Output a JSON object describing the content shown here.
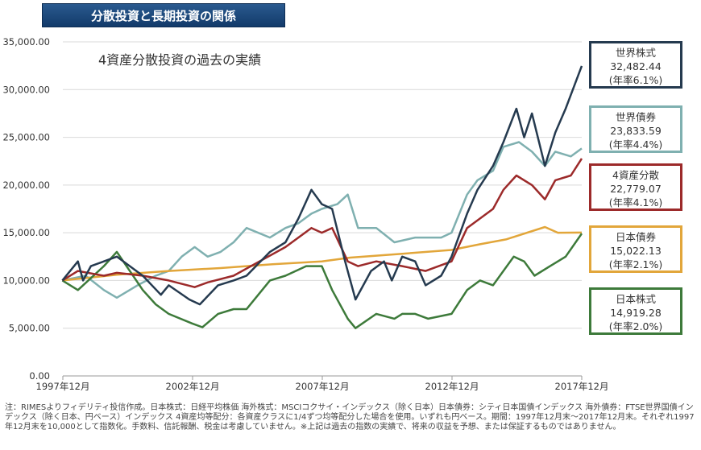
{
  "banner": "分散投資と長期投資の関係",
  "chart_data": {
    "type": "line",
    "title": "4資産分散投資の過去の実績",
    "xlim": [
      1997.92,
      2017.92
    ],
    "ylim": [
      0,
      35000
    ],
    "yticks": [
      0,
      5000,
      10000,
      15000,
      20000,
      25000,
      30000,
      35000
    ],
    "ytick_labels": [
      "0.00",
      "5,000.00",
      "10,000.00",
      "15,000.00",
      "20,000.00",
      "25,000.00",
      "30,000.00",
      "35,000.00"
    ],
    "xticks": [
      1997.92,
      2002.92,
      2007.92,
      2012.92,
      2017.92
    ],
    "xtick_labels": [
      "1997年12月",
      "2002年12月",
      "2007年12月",
      "2012年12月",
      "2017年12月"
    ],
    "grid": "horizontal",
    "series": [
      {
        "name": "世界債券",
        "value": "23,833.59",
        "rate": "(年率4.4%)",
        "color": "#7fb0b0",
        "x": [
          1997.9,
          1998.8,
          1999.5,
          2000.0,
          2000.8,
          2001.5,
          2002.0,
          2002.5,
          2003,
          2003.5,
          2004,
          2004.5,
          2005,
          2005.9,
          2006.5,
          2007,
          2007.5,
          2007.9,
          2008.5,
          2008.9,
          2009.3,
          2010,
          2010.7,
          2011.5,
          2012,
          2012.5,
          2012.9,
          2013.5,
          2013.9,
          2014.5,
          2014.9,
          2015.5,
          2016.0,
          2016.5,
          2016.9,
          2017.5,
          2017.92
        ],
        "y": [
          10000,
          10500,
          9000,
          8200,
          9500,
          10500,
          11000,
          12500,
          13500,
          12500,
          13000,
          14000,
          15500,
          14500,
          15500,
          16000,
          17000,
          17500,
          18000,
          19000,
          15500,
          15500,
          14000,
          14500,
          14500,
          14500,
          15000,
          19000,
          20500,
          21500,
          24000,
          24500,
          23500,
          22000,
          23500,
          23000,
          23834
        ]
      },
      {
        "name": "日本債券",
        "value": "15,022.13",
        "rate": "(年率2.1%)",
        "color": "#e2a63a",
        "x": [
          1997.9,
          2000,
          2002,
          2004,
          2006,
          2007.9,
          2009,
          2011,
          2012.9,
          2014,
          2015,
          2016.5,
          2017,
          2017.92
        ],
        "y": [
          10000,
          10600,
          11000,
          11300,
          11700,
          12000,
          12400,
          12800,
          13200,
          13800,
          14300,
          15600,
          15000,
          15022
        ]
      },
      {
        "name": "日本株式",
        "value": "14,919.28",
        "rate": "(年率2.0%)",
        "color": "#3d7a3a",
        "x": [
          1997.9,
          1998.5,
          1999.5,
          2000,
          2000.5,
          2001,
          2001.5,
          2002,
          2002.9,
          2003.3,
          2003.9,
          2004.5,
          2005,
          2005.9,
          2006.5,
          2007.3,
          2007.9,
          2008.3,
          2008.9,
          2009.2,
          2010,
          2010.7,
          2011,
          2011.5,
          2012,
          2012.9,
          2013.5,
          2014,
          2014.5,
          2015.3,
          2015.7,
          2016.1,
          2016.7,
          2017.3,
          2017.92
        ],
        "y": [
          10000,
          9000,
          11500,
          13000,
          11000,
          9000,
          7500,
          6500,
          5500,
          5100,
          6500,
          7000,
          7000,
          10000,
          10500,
          11500,
          11500,
          9000,
          6000,
          5000,
          6500,
          6000,
          6500,
          6500,
          6000,
          6500,
          9000,
          10000,
          9500,
          12500,
          12000,
          10500,
          11500,
          12500,
          14919
        ]
      },
      {
        "name": "4資産分散",
        "value": "22,779.07",
        "rate": "(年率4.1%)",
        "color": "#9c2a2a",
        "x": [
          1997.9,
          1998.5,
          1999.5,
          2000,
          2001,
          2002,
          2003,
          2003.5,
          2004.5,
          2005.5,
          2006.5,
          2007.5,
          2007.9,
          2008.3,
          2008.9,
          2009.3,
          2010,
          2011,
          2011.9,
          2012.9,
          2013.5,
          2014.5,
          2014.9,
          2015.4,
          2016.0,
          2016.5,
          2016.9,
          2017.5,
          2017.92
        ],
        "y": [
          10000,
          11000,
          10500,
          10800,
          10500,
          10000,
          9300,
          9800,
          10500,
          12000,
          13500,
          15500,
          15000,
          15500,
          12000,
          11500,
          12000,
          11500,
          11000,
          12000,
          15500,
          17500,
          19500,
          21000,
          20000,
          18500,
          20500,
          21000,
          22779
        ]
      },
      {
        "name": "世界株式",
        "value": "32,482.44",
        "rate": "(年率6.1%)",
        "color": "#253a4f",
        "x": [
          1997.9,
          1998.5,
          1998.7,
          1999,
          1999.5,
          2000,
          2000.5,
          2001,
          2001.7,
          2002,
          2002.8,
          2003.2,
          2003.9,
          2004.5,
          2005,
          2005.9,
          2006.5,
          2007,
          2007.5,
          2007.9,
          2008.3,
          2008.8,
          2009.2,
          2009.8,
          2010.3,
          2010.6,
          2011,
          2011.5,
          2011.9,
          2012.5,
          2012.9,
          2013.5,
          2013.9,
          2014.5,
          2014.9,
          2015.4,
          2015.7,
          2016.0,
          2016.5,
          2016.9,
          2017.3,
          2017.92
        ],
        "y": [
          10000,
          12000,
          10000,
          11500,
          12000,
          12500,
          11500,
          10500,
          8500,
          9500,
          8000,
          7500,
          9500,
          10000,
          10500,
          13000,
          14000,
          16500,
          19500,
          18000,
          17500,
          12000,
          8000,
          11000,
          12000,
          10000,
          12500,
          12000,
          9500,
          10500,
          12500,
          17000,
          19500,
          22000,
          24500,
          28000,
          25000,
          27500,
          22000,
          25500,
          28000,
          32482
        ]
      }
    ]
  },
  "note": "注：RIMESよりフィデリティ投信作成。日本株式：日経平均株価 海外株式：MSCIコクサイ・インデックス（除く日本）日本債券：シティ日本国債インデックス 海外債券：FTSE世界国債インデックス（除く日本、円ベース）インデックス 4資産均等配分：各資産クラスに1/4ずつ均等配分した場合を使用。いずれも円ベース。期間：1997年12月末～2017年12月末。それぞれ1997年12月末を10,000として指数化。手数料、信託報酬、税金は考慮していません。※上記は過去の指数の実績で、将来の収益を予想、または保証するものではありません。"
}
